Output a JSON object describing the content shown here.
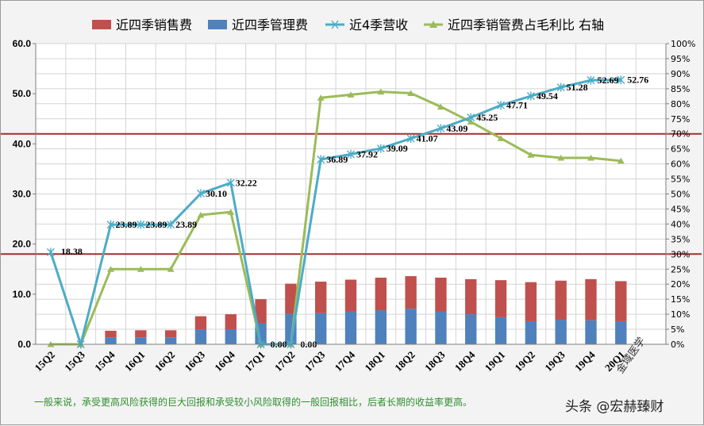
{
  "chart_data": {
    "type": "bar",
    "categories": [
      "15Q2",
      "15Q3",
      "15Q4",
      "16Q1",
      "16Q2",
      "16Q3",
      "16Q4",
      "17Q1",
      "17Q2",
      "17Q3",
      "17Q4",
      "18Q1",
      "18Q2",
      "18Q3",
      "18Q4",
      "19Q1",
      "19Q2",
      "19Q3",
      "19Q4",
      "20Q1"
    ],
    "stacked_bars": [
      {
        "name": "近四季销售费",
        "color": "#c0504d",
        "values": [
          0,
          0,
          1.3,
          1.4,
          1.4,
          2.6,
          3.0,
          4.8,
          6.0,
          6.3,
          6.4,
          6.5,
          6.5,
          6.8,
          7.0,
          7.4,
          7.8,
          7.8,
          8.2,
          8.0
        ]
      },
      {
        "name": "近四季管理费",
        "color": "#4f81bd",
        "values": [
          0,
          0,
          1.4,
          1.4,
          1.4,
          3.0,
          3.0,
          4.2,
          6.1,
          6.2,
          6.5,
          6.8,
          7.1,
          6.5,
          6.0,
          5.4,
          4.6,
          4.9,
          4.8,
          4.6
        ]
      }
    ],
    "lines": [
      {
        "name": "近4季营收",
        "color": "#4bacc6",
        "axis": "left",
        "values": [
          18.38,
          0.0,
          23.89,
          23.89,
          23.89,
          30.1,
          32.22,
          0.0,
          0.0,
          36.89,
          37.92,
          39.09,
          41.07,
          43.09,
          45.25,
          47.71,
          49.54,
          51.28,
          52.69,
          52.76
        ],
        "labels": [
          "18.38",
          "",
          "23.89",
          "23.89",
          "23.89",
          "30.10",
          "32.22",
          "0.00",
          "0.00",
          "36.89",
          "37.92",
          "39.09",
          "41.07",
          "43.09",
          "45.25",
          "47.71",
          "49.54",
          "51.28",
          "52.69",
          "52.76"
        ]
      },
      {
        "name": "近四季销管费占毛利比 右轴",
        "color": "#9bbb59",
        "axis": "right",
        "values": [
          0,
          0,
          25,
          25,
          25,
          43,
          44,
          0,
          0,
          82,
          83,
          84,
          83.5,
          79,
          74,
          68.5,
          63,
          62,
          62,
          61
        ]
      }
    ],
    "reference_lines": [
      {
        "axis": "right",
        "value": 70,
        "color": "#a03030"
      },
      {
        "axis": "right",
        "value": 30,
        "color": "#a03030"
      }
    ],
    "y_left": {
      "min": 0,
      "max": 60,
      "step": 10,
      "ticks": [
        "0.0",
        "10.0",
        "20.0",
        "30.0",
        "40.0",
        "50.0",
        "60.0"
      ]
    },
    "y_right": {
      "min": 0,
      "max": 100,
      "step": 5,
      "ticks": [
        "0%",
        "5%",
        "10%",
        "15%",
        "20%",
        "25%",
        "30%",
        "35%",
        "40%",
        "45%",
        "50%",
        "55%",
        "60%",
        "65%",
        "70%",
        "75%",
        "80%",
        "85%",
        "90%",
        "95%",
        "100%"
      ]
    },
    "legend_position": "top",
    "grid": true
  },
  "legend": [
    {
      "label": "近四季销售费",
      "kind": "bar",
      "color": "#c0504d"
    },
    {
      "label": "近四季管理费",
      "kind": "bar",
      "color": "#4f81bd"
    },
    {
      "label": "近4季营收",
      "kind": "line-star",
      "color": "#4bacc6"
    },
    {
      "label": "近四季销管费占毛利比 右轴",
      "kind": "line-tri",
      "color": "#9bbb59"
    }
  ],
  "footnote": "一般来说，承受更高风险获得的巨大回报和承受较小风险取得的一般回报相比，后者长期的收益率更高。",
  "watermark": "头条 @宏赫臻财",
  "stamp": "金域医学"
}
